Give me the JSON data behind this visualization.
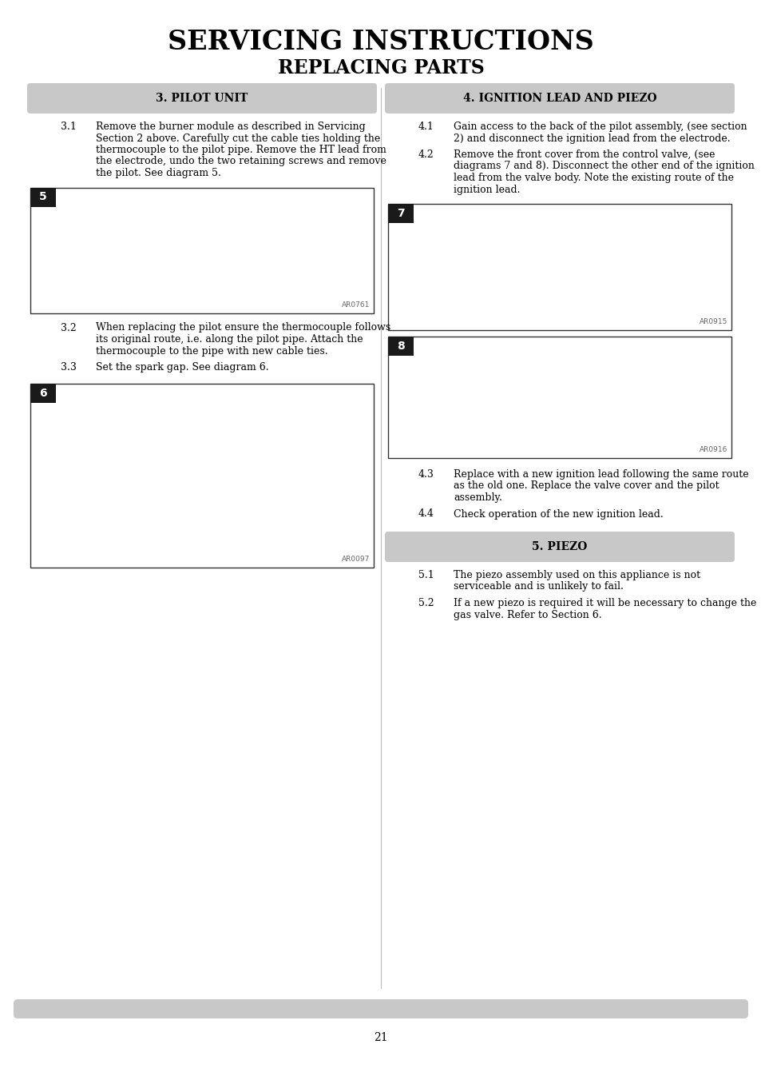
{
  "title_main": "SERVICING INSTRUCTIONS",
  "title_sub": "REPLACING PARTS",
  "bg_color": "#ffffff",
  "page_number": "21",
  "left_section_title": "3. PILOT UNIT",
  "right_section_title": "4. IGNITION LEAD AND PIEZO",
  "bottom_section_title": "5. PIEZO",
  "section_header_bg": "#c8c8c8",
  "section_header_text_color": "#000000",
  "diagram_bg": "#ffffff",
  "diagram_border": "#000000",
  "diagram_label_bg": "#1a1a1a",
  "diagram_label_text": "#ffffff",
  "footer_bar_color": "#c8c8c8",
  "left_items": [
    {
      "num": "3.1",
      "text": "Remove the burner module as described in Servicing\nSection 2 above. Carefully cut the cable ties holding the\nthermocouple to the pilot pipe. Remove the HT lead from\nthe electrode, undo the two retaining screws and remove\nthe pilot. See diagram 5."
    },
    {
      "num": "3.2",
      "text": "When replacing the pilot ensure the thermocouple follows\nits original route, i.e. along the pilot pipe. Attach the\nthermocouple to the pipe with new cable ties."
    },
    {
      "num": "3.3",
      "text": "Set the spark gap. See diagram 6."
    }
  ],
  "right_items": [
    {
      "num": "4.1",
      "text": "Gain access to the back of the pilot assembly, (see section\n2) and disconnect the ignition lead from the electrode."
    },
    {
      "num": "4.2",
      "text": "Remove the front cover from the control valve, (see\ndiagrams 7 and 8). Disconnect the other end of the ignition\nlead from the valve body. Note the existing route of the\nignition lead."
    },
    {
      "num": "4.3",
      "text": "Replace with a new ignition lead following the same route\nas the old one. Replace the valve cover and the pilot\nassembly."
    },
    {
      "num": "4.4",
      "text": "Check operation of the new ignition lead."
    }
  ],
  "bottom_items": [
    {
      "num": "5.1",
      "text": "The piezo assembly used on this appliance is not\nserviceable and is unlikely to fail."
    },
    {
      "num": "5.2",
      "text": "If a new piezo is required it will be necessary to change the\ngas valve. Refer to Section 6."
    }
  ],
  "diagram5_label": "5",
  "diagram6_label": "6",
  "diagram7_label": "7",
  "diagram8_label": "8",
  "diagram5_ref": "AR0761",
  "diagram6_ref": "AR0097",
  "diagram7_ref": "AR0915",
  "diagram8_ref": "AR0916"
}
